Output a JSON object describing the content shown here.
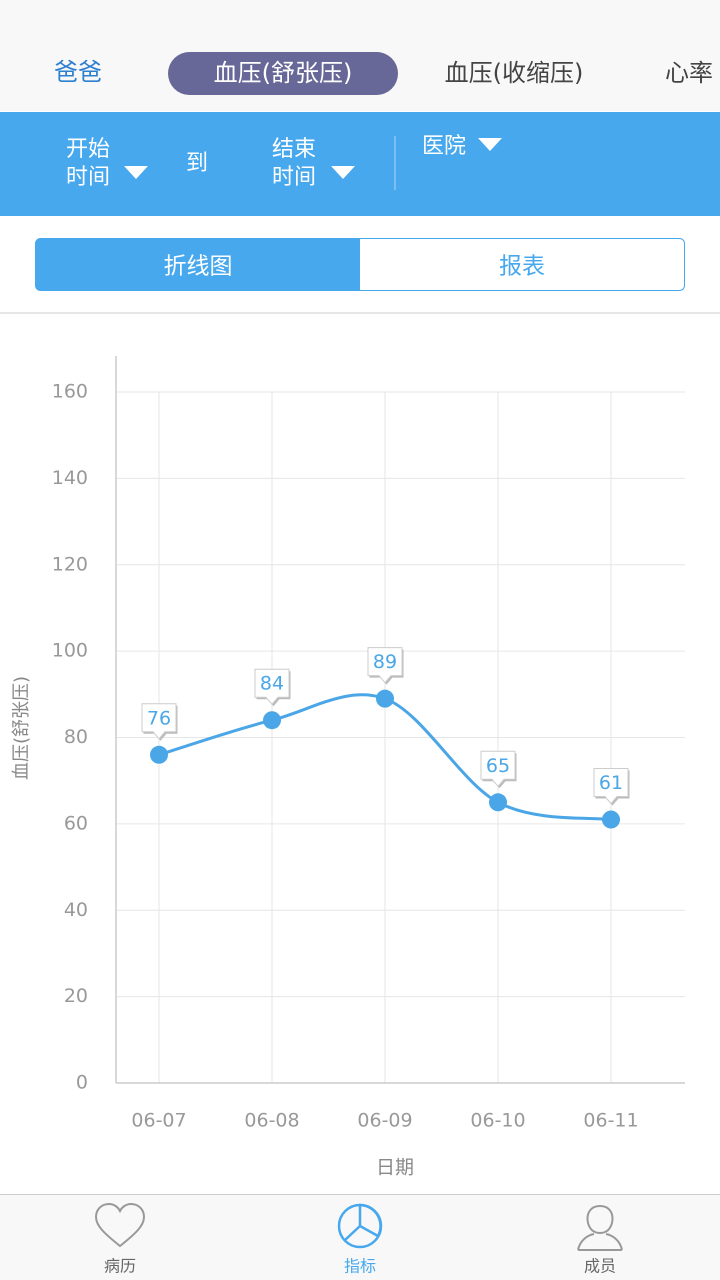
{
  "tabs": [
    "爸爸",
    "血压(舒张压)",
    "血压(收缩压)",
    "心率"
  ],
  "filters": {
    "start": [
      "开始",
      "时间"
    ],
    "to": "到",
    "end": [
      "结束",
      "时间"
    ],
    "hospital": "医院"
  },
  "view_toggle": [
    "折线图",
    "报表"
  ],
  "chart_data": {
    "type": "line",
    "categories": [
      "06-07",
      "06-08",
      "06-09",
      "06-10",
      "06-11"
    ],
    "values": [
      76,
      84,
      89,
      65,
      61
    ],
    "color": "#4aa6e6",
    "ylim": [
      0,
      160
    ],
    "yticks": [
      0,
      20,
      40,
      60,
      80,
      100,
      120,
      140,
      160
    ],
    "grid": true,
    "x_label": "日期",
    "y_label": "血压(舒张压)"
  },
  "nav": [
    "病历",
    "指标",
    "成员"
  ]
}
